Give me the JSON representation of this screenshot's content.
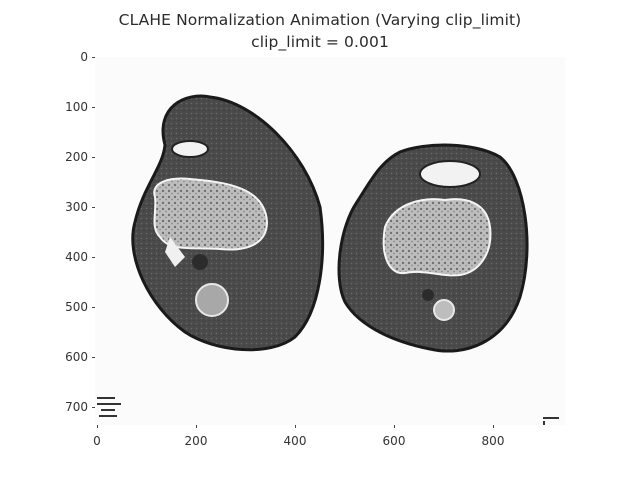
{
  "figure": {
    "title": "CLAHE Normalization Animation (Varying clip_limit)",
    "subtitle": "clip_limit = 0.001"
  },
  "axes": {
    "y_ticks": [
      "0",
      "100",
      "200",
      "300",
      "400",
      "500",
      "600",
      "700"
    ],
    "x_ticks": [
      "0",
      "200",
      "400",
      "600",
      "800"
    ]
  },
  "image": {
    "description_icon": "ct-knee-axial-slice-icon",
    "background_color": "#fbfbfb",
    "tissue_color": "#505050",
    "bone_color": "#bfbfbf"
  }
}
